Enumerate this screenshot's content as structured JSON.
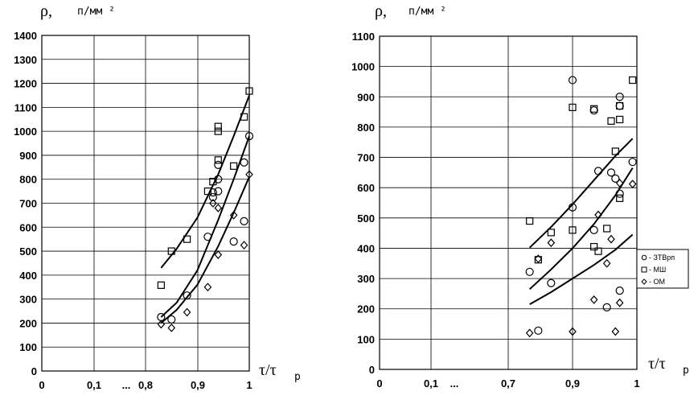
{
  "charts": [
    {
      "y_label": "ρ,",
      "y_unit": "п/мм ²",
      "x_label": "τ/τ",
      "x_label_sub": "р",
      "y_ticks": [
        "0",
        "100",
        "200",
        "300",
        "400",
        "500",
        "600",
        "700",
        "800",
        "900",
        "1000",
        "1100",
        "1200",
        "1300",
        "1400"
      ],
      "x_ticks": [
        "0",
        "0,1",
        "...",
        "0,8",
        "0,9",
        "1"
      ]
    },
    {
      "y_label": "ρ,",
      "y_unit": "п/мм ²",
      "x_label": "τ/τ",
      "x_label_sub": "р",
      "y_ticks": [
        "0",
        "100",
        "200",
        "300",
        "400",
        "500",
        "600",
        "700",
        "800",
        "900",
        "1000",
        "1100"
      ],
      "x_ticks": [
        "0",
        "0,1",
        "...",
        "0,7",
        "0,9",
        "1"
      ]
    }
  ],
  "legend": {
    "items": [
      {
        "symbol": "circle",
        "label": "- ЗТВрп"
      },
      {
        "symbol": "square",
        "label": "- МШ"
      },
      {
        "symbol": "diamond",
        "label": "- ОМ"
      }
    ]
  },
  "chart_data": [
    {
      "type": "scatter",
      "xlabel": "τ/τр",
      "ylabel": "ρ, п/мм²",
      "ylim": [
        0,
        1400
      ],
      "x_axis_note": "broken axis: 0, 0,1, ..., 0,8, 0,9, 1",
      "grid": true,
      "series": [
        {
          "name": "ЗТВрп",
          "marker": "circle",
          "points": [
            [
              0.83,
              225
            ],
            [
              0.85,
              215
            ],
            [
              0.88,
              315
            ],
            [
              0.92,
              560
            ],
            [
              0.93,
              725
            ],
            [
              0.93,
              745
            ],
            [
              0.94,
              750
            ],
            [
              0.94,
              800
            ],
            [
              0.94,
              860
            ],
            [
              0.97,
              540
            ],
            [
              0.99,
              625
            ],
            [
              0.99,
              870
            ],
            [
              1.0,
              980
            ]
          ]
        },
        {
          "name": "МШ",
          "marker": "square",
          "points": [
            [
              0.83,
              358
            ],
            [
              0.85,
              500
            ],
            [
              0.88,
              550
            ],
            [
              0.92,
              750
            ],
            [
              0.93,
              790
            ],
            [
              0.94,
              880
            ],
            [
              0.94,
              1000
            ],
            [
              0.94,
              1020
            ],
            [
              0.97,
              855
            ],
            [
              0.99,
              1060
            ],
            [
              1.0,
              1168
            ]
          ]
        },
        {
          "name": "ОМ",
          "marker": "diamond",
          "points": [
            [
              0.83,
              195
            ],
            [
              0.85,
              180
            ],
            [
              0.88,
              245
            ],
            [
              0.92,
              350
            ],
            [
              0.93,
              700
            ],
            [
              0.94,
              680
            ],
            [
              0.94,
              485
            ],
            [
              0.97,
              650
            ],
            [
              0.99,
              525
            ],
            [
              1.0,
              820
            ]
          ]
        }
      ],
      "trend_lines": [
        {
          "points": [
            [
              0.83,
              430
            ],
            [
              0.86,
              510
            ],
            [
              0.9,
              640
            ],
            [
              0.94,
              820
            ],
            [
              0.97,
              980
            ],
            [
              1.0,
              1150
            ]
          ]
        },
        {
          "points": [
            [
              0.83,
              225
            ],
            [
              0.86,
              285
            ],
            [
              0.9,
              420
            ],
            [
              0.94,
              630
            ],
            [
              0.97,
              800
            ],
            [
              1.0,
              980
            ]
          ]
        },
        {
          "points": [
            [
              0.83,
              200
            ],
            [
              0.86,
              255
            ],
            [
              0.9,
              360
            ],
            [
              0.94,
              520
            ],
            [
              0.97,
              660
            ],
            [
              1.0,
              810
            ]
          ]
        }
      ]
    },
    {
      "type": "scatter",
      "xlabel": "τ/τр",
      "ylabel": "ρ, п/мм²",
      "ylim": [
        0,
        1100
      ],
      "x_axis_note": "broken axis: 0, 0,1, ..., 0,7, 0,9, 1",
      "grid": true,
      "series": [
        {
          "name": "ЗТВрп",
          "marker": "circle",
          "points": [
            [
              0.75,
              322
            ],
            [
              0.77,
              128
            ],
            [
              0.8,
              285
            ],
            [
              0.85,
              955
            ],
            [
              0.85,
              535
            ],
            [
              0.9,
              855
            ],
            [
              0.9,
              460
            ],
            [
              0.91,
              655
            ],
            [
              0.93,
              205
            ],
            [
              0.94,
              650
            ],
            [
              0.95,
              630
            ],
            [
              0.96,
              900
            ],
            [
              0.96,
              870
            ],
            [
              0.96,
              580
            ],
            [
              0.96,
              260
            ],
            [
              0.99,
              685
            ]
          ]
        },
        {
          "name": "МШ",
          "marker": "square",
          "points": [
            [
              0.75,
              490
            ],
            [
              0.77,
              362
            ],
            [
              0.8,
              452
            ],
            [
              0.85,
              865
            ],
            [
              0.85,
              460
            ],
            [
              0.9,
              860
            ],
            [
              0.9,
              405
            ],
            [
              0.91,
              390
            ],
            [
              0.93,
              465
            ],
            [
              0.94,
              820
            ],
            [
              0.95,
              720
            ],
            [
              0.96,
              870
            ],
            [
              0.96,
              825
            ],
            [
              0.96,
              565
            ],
            [
              0.99,
              955
            ]
          ]
        },
        {
          "name": "ОМ",
          "marker": "diamond",
          "points": [
            [
              0.75,
              120
            ],
            [
              0.77,
              365
            ],
            [
              0.8,
              418
            ],
            [
              0.85,
              125
            ],
            [
              0.9,
              230
            ],
            [
              0.91,
              510
            ],
            [
              0.93,
              350
            ],
            [
              0.94,
              430
            ],
            [
              0.95,
              125
            ],
            [
              0.96,
              220
            ],
            [
              0.96,
              615
            ],
            [
              0.99,
              612
            ]
          ]
        }
      ],
      "trend_lines": [
        {
          "points": [
            [
              0.75,
              402
            ],
            [
              0.8,
              470
            ],
            [
              0.85,
              545
            ],
            [
              0.9,
              625
            ],
            [
              0.95,
              705
            ],
            [
              0.99,
              762
            ]
          ]
        },
        {
          "points": [
            [
              0.75,
              265
            ],
            [
              0.8,
              330
            ],
            [
              0.85,
              400
            ],
            [
              0.9,
              480
            ],
            [
              0.95,
              575
            ],
            [
              0.99,
              665
            ]
          ]
        },
        {
          "points": [
            [
              0.75,
              215
            ],
            [
              0.8,
              255
            ],
            [
              0.85,
              300
            ],
            [
              0.9,
              345
            ],
            [
              0.95,
              395
            ],
            [
              0.99,
              445
            ]
          ]
        }
      ]
    }
  ]
}
